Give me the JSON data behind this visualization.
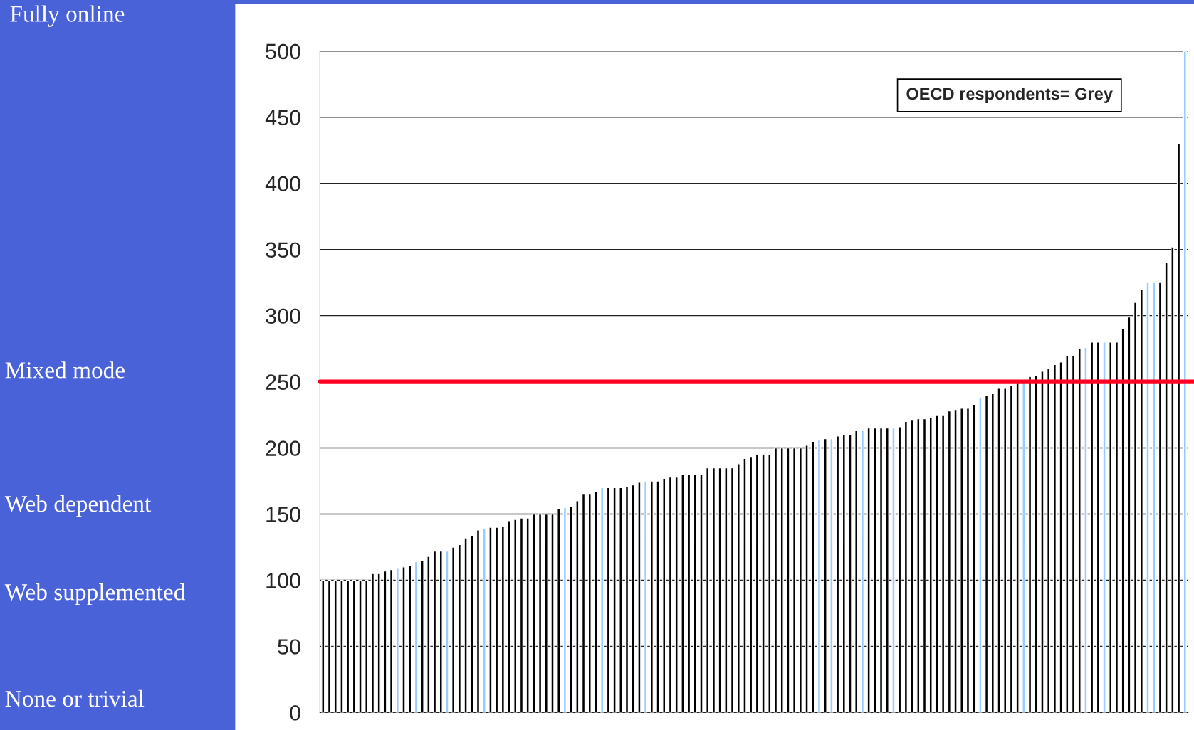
{
  "chart_data": {
    "type": "bar",
    "categories": [
      null,
      null,
      null,
      null,
      null,
      null,
      null,
      null,
      null,
      null,
      null,
      null,
      null,
      null,
      null,
      null,
      null,
      null,
      null,
      null,
      null,
      null,
      null,
      null,
      null,
      null,
      null,
      null,
      null,
      null,
      null,
      null,
      null,
      null,
      null,
      null,
      null,
      null,
      null,
      null,
      null,
      null,
      null,
      null,
      null,
      null,
      null,
      null,
      null,
      null,
      null,
      null,
      null,
      null,
      null,
      null,
      null,
      null,
      null,
      null,
      null,
      null,
      null,
      null,
      null,
      null,
      null,
      null,
      null,
      null,
      null,
      null,
      null,
      null,
      null,
      null,
      null,
      null,
      null,
      null,
      null,
      null,
      null,
      null,
      null,
      null,
      null,
      null,
      null,
      null,
      null,
      null,
      null,
      null,
      null,
      null,
      null,
      null,
      null,
      null,
      null,
      null,
      null,
      null,
      null,
      null,
      null,
      null,
      null,
      null,
      null,
      null,
      null,
      null,
      null,
      null,
      null,
      null,
      null,
      null,
      null,
      null,
      null,
      null,
      null,
      null,
      null,
      null,
      null,
      null,
      null,
      null,
      null,
      null,
      null,
      null,
      null,
      null,
      null,
      null
    ],
    "values": [
      100,
      100,
      100,
      100,
      100,
      100,
      100,
      100,
      105,
      105,
      107,
      108,
      109,
      110,
      111,
      114,
      115,
      118,
      122,
      122,
      122,
      125,
      127,
      132,
      134,
      138,
      139,
      140,
      140,
      141,
      145,
      146,
      147,
      147,
      150,
      150,
      150,
      150,
      154,
      155,
      156,
      160,
      165,
      165,
      167,
      170,
      170,
      170,
      170,
      171,
      172,
      174,
      175,
      175,
      175,
      177,
      178,
      178,
      180,
      180,
      180,
      180,
      185,
      185,
      185,
      185,
      185,
      188,
      192,
      193,
      195,
      195,
      195,
      200,
      200,
      200,
      200,
      200,
      202,
      205,
      206,
      207,
      207,
      209,
      210,
      210,
      213,
      213,
      215,
      215,
      215,
      215,
      215,
      216,
      220,
      221,
      222,
      222,
      223,
      225,
      225,
      228,
      229,
      230,
      230,
      233,
      238,
      240,
      241,
      245,
      245,
      247,
      249,
      250,
      254,
      255,
      258,
      260,
      263,
      265,
      270,
      270,
      275,
      276,
      280,
      280,
      280,
      280,
      280,
      290,
      299,
      310,
      320,
      325,
      325,
      325,
      340,
      352,
      430,
      500
    ],
    "colors": [
      "#000000",
      "#000000",
      "#000000",
      "#000000",
      "#000000",
      "#000000",
      "#000000",
      "#000000",
      "#000000",
      "#000000",
      "#000000",
      "#000000",
      "#99ccff",
      "#000000",
      "#000000",
      "#99ccff",
      "#000000",
      "#000000",
      "#000000",
      "#000000",
      "#99ccff",
      "#000000",
      "#000000",
      "#000000",
      "#000000",
      "#000000",
      "#99ccff",
      "#000000",
      "#000000",
      "#000000",
      "#000000",
      "#000000",
      "#000000",
      "#000000",
      "#000000",
      "#000000",
      "#000000",
      "#000000",
      "#000000",
      "#99ccff",
      "#000000",
      "#000000",
      "#000000",
      "#000000",
      "#000000",
      "#99ccff",
      "#000000",
      "#000000",
      "#000000",
      "#000000",
      "#000000",
      "#000000",
      "#99ccff",
      "#000000",
      "#000000",
      "#000000",
      "#000000",
      "#000000",
      "#000000",
      "#000000",
      "#000000",
      "#000000",
      "#000000",
      "#000000",
      "#000000",
      "#000000",
      "#000000",
      "#000000",
      "#000000",
      "#000000",
      "#000000",
      "#000000",
      "#000000",
      "#000000",
      "#000000",
      "#000000",
      "#000000",
      "#000000",
      "#000000",
      "#000000",
      "#99ccff",
      "#000000",
      "#99ccff",
      "#000000",
      "#000000",
      "#000000",
      "#000000",
      "#99ccff",
      "#000000",
      "#000000",
      "#000000",
      "#000000",
      "#99ccff",
      "#000000",
      "#000000",
      "#000000",
      "#000000",
      "#000000",
      "#000000",
      "#000000",
      "#000000",
      "#000000",
      "#000000",
      "#000000",
      "#000000",
      "#000000",
      "#99ccff",
      "#000000",
      "#000000",
      "#000000",
      "#000000",
      "#000000",
      "#000000",
      "#99ccff",
      "#000000",
      "#000000",
      "#000000",
      "#000000",
      "#000000",
      "#000000",
      "#000000",
      "#000000",
      "#000000",
      "#99ccff",
      "#000000",
      "#000000",
      "#99ccff",
      "#000000",
      "#000000",
      "#000000",
      "#000000",
      "#000000",
      "#000000",
      "#99ccff",
      "#99ccff",
      "#000000",
      "#000000",
      "#000000",
      "#000000",
      "#99ccff"
    ],
    "ylim": [
      0,
      500
    ],
    "yticks": [
      0,
      50,
      100,
      150,
      200,
      250,
      300,
      350,
      400,
      450,
      500
    ],
    "grid": "y",
    "tick_labels": "y",
    "ref_lines": [
      {
        "axis": "y",
        "value": 250,
        "color": "#ff0022"
      }
    ],
    "annotations": [
      "OECD respondents= Grey",
      "Fully online",
      "Mixed mode",
      "Web dependent",
      "Web supplemented",
      "None or trivial"
    ]
  }
}
